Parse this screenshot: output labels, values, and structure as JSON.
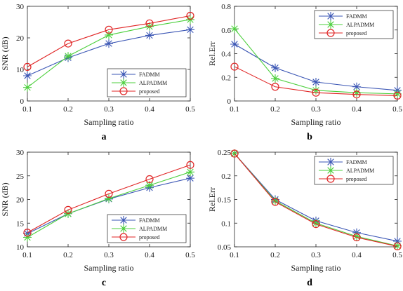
{
  "chart_data": [
    {
      "type": "line",
      "panel_label": "a",
      "xlabel": "Sampling ratio",
      "ylabel": "SNR (dB)",
      "x": [
        0.1,
        0.2,
        0.3,
        0.4,
        0.5
      ],
      "xticks": [
        "0.1",
        "0.2",
        "0.3",
        "0.4",
        "0.5"
      ],
      "xlim": [
        0.1,
        0.5
      ],
      "ylim": [
        0,
        30
      ],
      "yticks": [
        "0",
        "10",
        "20",
        "30"
      ],
      "legend_position": "lower-right",
      "series": [
        {
          "name": "FADMM",
          "color": "#3a55b4",
          "marker": "asterisk",
          "values": [
            8.0,
            13.7,
            18.2,
            20.8,
            22.6
          ]
        },
        {
          "name": "ALPADMM",
          "color": "#4ccf3c",
          "marker": "asterisk",
          "values": [
            4.3,
            14.2,
            20.9,
            23.6,
            25.8
          ]
        },
        {
          "name": "proposed",
          "color": "#e02424",
          "marker": "circle",
          "values": [
            10.8,
            18.2,
            22.6,
            24.6,
            27.0
          ]
        }
      ]
    },
    {
      "type": "line",
      "panel_label": "b",
      "xlabel": "Sampling ratio",
      "ylabel": "Rel.Err",
      "x": [
        0.1,
        0.2,
        0.3,
        0.4,
        0.5
      ],
      "xticks": [
        "0.1",
        "0.2",
        "0.3",
        "0.4",
        "0.5"
      ],
      "xlim": [
        0.1,
        0.5
      ],
      "ylim": [
        0,
        0.8
      ],
      "yticks": [
        "0",
        "0.2",
        "0.4",
        "0.6",
        "0.8"
      ],
      "legend_position": "top-right",
      "series": [
        {
          "name": "FADMM",
          "color": "#3a55b4",
          "marker": "asterisk",
          "values": [
            0.48,
            0.28,
            0.16,
            0.12,
            0.09
          ]
        },
        {
          "name": "ALPADMM",
          "color": "#4ccf3c",
          "marker": "asterisk",
          "values": [
            0.61,
            0.19,
            0.09,
            0.07,
            0.06
          ]
        },
        {
          "name": "proposed",
          "color": "#e02424",
          "marker": "circle",
          "values": [
            0.29,
            0.12,
            0.07,
            0.055,
            0.045
          ]
        }
      ]
    },
    {
      "type": "line",
      "panel_label": "c",
      "xlabel": "Sampling ratio",
      "ylabel": "SNR (dB)",
      "x": [
        0.1,
        0.2,
        0.3,
        0.4,
        0.5
      ],
      "xticks": [
        "0.1",
        "0.2",
        "0.3",
        "0.4",
        "0.5"
      ],
      "xlim": [
        0.1,
        0.5
      ],
      "ylim": [
        10,
        30
      ],
      "yticks": [
        "10",
        "15",
        "20",
        "25",
        "30"
      ],
      "legend_position": "lower-right",
      "series": [
        {
          "name": "FADMM",
          "color": "#3a55b4",
          "marker": "asterisk",
          "values": [
            12.8,
            17.0,
            20.1,
            22.5,
            24.5
          ]
        },
        {
          "name": "ALPADMM",
          "color": "#4ccf3c",
          "marker": "asterisk",
          "values": [
            12.0,
            17.0,
            20.2,
            23.0,
            25.8
          ]
        },
        {
          "name": "proposed",
          "color": "#e02424",
          "marker": "circle",
          "values": [
            13.0,
            17.8,
            21.2,
            24.3,
            27.3
          ]
        }
      ]
    },
    {
      "type": "line",
      "panel_label": "d",
      "xlabel": "Sampling ratio",
      "ylabel": "Rel.Err",
      "x": [
        0.1,
        0.2,
        0.3,
        0.4,
        0.5
      ],
      "xticks": [
        "0.1",
        "0.2",
        "0.3",
        "0.4",
        "0.5"
      ],
      "xlim": [
        0.1,
        0.5
      ],
      "ylim": [
        0.05,
        0.25
      ],
      "yticks": [
        "0.05",
        "0.1",
        "0.15",
        "0.2",
        "0.25"
      ],
      "legend_position": "top-right",
      "series": [
        {
          "name": "FADMM",
          "color": "#3a55b4",
          "marker": "asterisk",
          "values": [
            0.247,
            0.15,
            0.105,
            0.08,
            0.062
          ]
        },
        {
          "name": "ALPADMM",
          "color": "#4ccf3c",
          "marker": "asterisk",
          "values": [
            0.247,
            0.147,
            0.1,
            0.072,
            0.052
          ]
        },
        {
          "name": "proposed",
          "color": "#e02424",
          "marker": "circle",
          "values": [
            0.247,
            0.145,
            0.098,
            0.07,
            0.051
          ]
        }
      ]
    }
  ]
}
